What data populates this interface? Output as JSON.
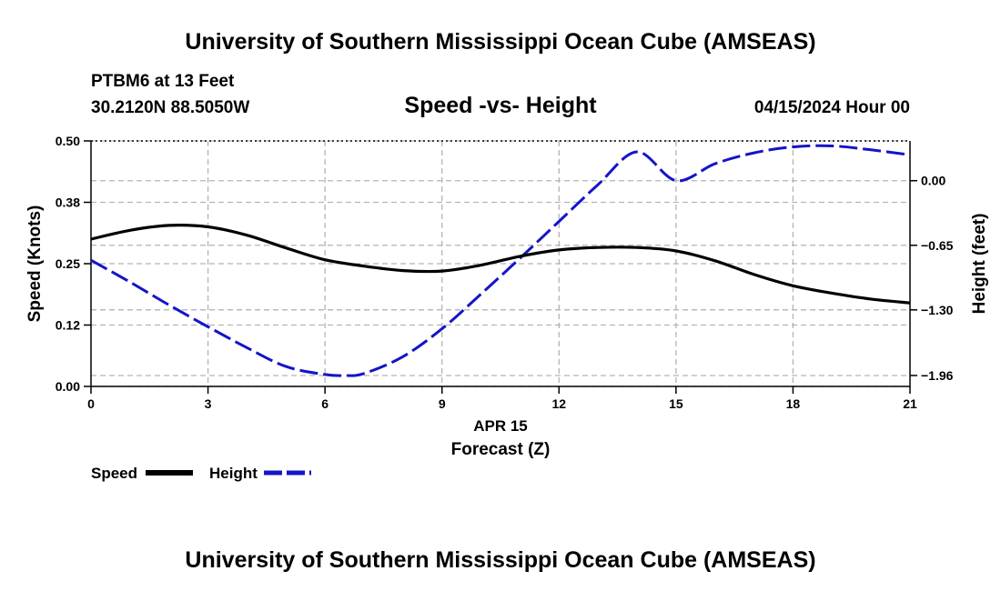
{
  "header": {
    "title": "University of Southern Mississippi Ocean Cube (AMSEAS)",
    "station": "PTBM6 at 13 Feet",
    "location": "30.2120N  88.5050W",
    "chart_title": "Speed -vs- Height",
    "datetime": "04/15/2024 Hour 00"
  },
  "footer": {
    "title": "University of Southern Mississippi Ocean Cube (AMSEAS)"
  },
  "legend": {
    "speed_label": "Speed",
    "height_label": "Height"
  },
  "colors": {
    "speed": "#000000",
    "height": "#1414c8",
    "grid": "#b4b4b4"
  },
  "chart_data": {
    "type": "line",
    "title": "Speed -vs- Height",
    "xlabel": "Forecast (Z)",
    "xlabel_date": "APR 15",
    "ylabel_left": "Speed (Knots)",
    "ylabel_right": "Height (feet)",
    "xlim": [
      0,
      21
    ],
    "x_ticks": [
      0,
      3,
      6,
      9,
      12,
      15,
      18,
      21
    ],
    "x_tick_labels": [
      "0",
      "3",
      "6",
      "9",
      "12",
      "15",
      "18",
      "21"
    ],
    "ylim_left": [
      0,
      0.5
    ],
    "y_left_ticks": [
      0.0,
      0.125,
      0.25,
      0.375,
      0.5
    ],
    "y_left_tick_labels": [
      "0.00",
      "0.12",
      "0.25",
      "0.38",
      "0.50"
    ],
    "ylim_right": [
      -2.07,
      0.4
    ],
    "y_right_ticks": [
      0.0,
      -0.65,
      -1.3,
      -1.96
    ],
    "y_right_tick_labels": [
      "0.00",
      "−0.65",
      "−1.30",
      "−1.96"
    ],
    "grid": true,
    "legend_position": "bottom-left",
    "series": [
      {
        "name": "Speed",
        "axis": "left",
        "style": "solid",
        "x": [
          0,
          1,
          2,
          3,
          4,
          5,
          6,
          7,
          8,
          9,
          10,
          11,
          12,
          13,
          14,
          15,
          16,
          17,
          18,
          19,
          20,
          21
        ],
        "values": [
          0.3,
          0.318,
          0.328,
          0.325,
          0.308,
          0.282,
          0.258,
          0.245,
          0.236,
          0.235,
          0.247,
          0.265,
          0.278,
          0.283,
          0.283,
          0.276,
          0.256,
          0.228,
          0.205,
          0.19,
          0.178,
          0.17
        ]
      },
      {
        "name": "Height",
        "axis": "right",
        "style": "dashed",
        "x": [
          0,
          1,
          2,
          3,
          4,
          5,
          6,
          6.5,
          7,
          8,
          9,
          10,
          11,
          12,
          13,
          14,
          15,
          16,
          17,
          18,
          19,
          20,
          21
        ],
        "values": [
          -0.8,
          -1.02,
          -1.25,
          -1.47,
          -1.68,
          -1.87,
          -1.95,
          -1.96,
          -1.94,
          -1.77,
          -1.49,
          -1.14,
          -0.78,
          -0.41,
          -0.04,
          0.29,
          0.0,
          0.17,
          0.28,
          0.34,
          0.35,
          0.31,
          0.26
        ]
      }
    ]
  }
}
